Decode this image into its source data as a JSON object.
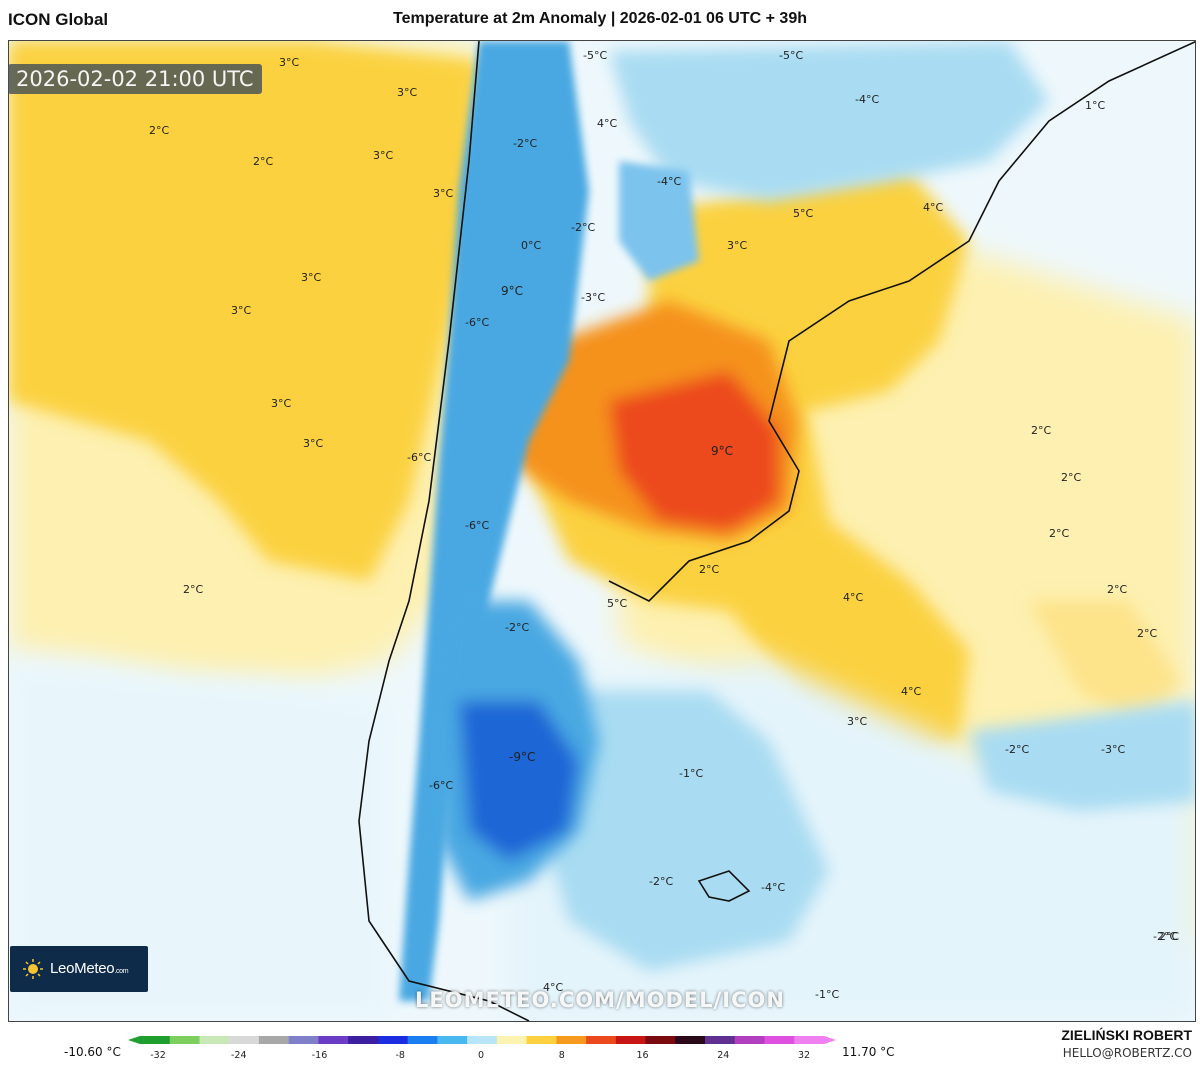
{
  "header": {
    "model_name": "ICON Global",
    "title": "Temperature at 2m Anomaly | 2026-02-01 06 UTC + 39h"
  },
  "map": {
    "valid_time": "2026-02-02 21:00 UTC",
    "watermark": "LEOMETEO.COM/MODEL/ICON",
    "contour_labels": [
      "3°C",
      "3°C",
      "2°C",
      "2°C",
      "3°C",
      "3°C",
      "3°C",
      "3°C",
      "3°C",
      "3°C",
      "2°C",
      "-5°C",
      "-2°C",
      "4°C",
      "0°C",
      "-2°C",
      "9°C",
      "-3°C",
      "-6°C",
      "-6°C",
      "-6°C",
      "-6°C",
      "-4°C",
      "-5°C",
      "-4°C",
      "1°C",
      "5°C",
      "4°C",
      "3°C",
      "9°C",
      "2°C",
      "2°C",
      "2°C",
      "2°C",
      "2°C",
      "4°C",
      "4°C",
      "3°C",
      "2°C",
      "5°C",
      "-2°C",
      "-9°C",
      "-4°C",
      "-1°C",
      "-2°C",
      "-2°C",
      "-3°C",
      "-2°C",
      "2°C",
      "-1°C",
      "4°C"
    ],
    "colors": {
      "warm_pale": "#fdf0b0",
      "warm_yellow": "#fbd13f",
      "warm_orange": "#f5921e",
      "warm_red": "#ec4a1d",
      "cool_pale": "#e6f5fb",
      "cool_light": "#a9dcf2",
      "cool_blue": "#4aa8e2",
      "cool_deep": "#1f66d6",
      "land_outline": "#111111"
    }
  },
  "legend": {
    "min_label": "-10.60 °C",
    "max_label": "11.70 °C",
    "ticks": [
      "-32",
      "-24",
      "-16",
      "-8",
      "0",
      "8",
      "16",
      "24",
      "32"
    ],
    "colors": [
      "#1e9e2e",
      "#7ccf5c",
      "#c9e8b8",
      "#d8d8d8",
      "#a8a8a8",
      "#8080c8",
      "#6a3cc8",
      "#3c1ea0",
      "#1c2ce0",
      "#1a7ef0",
      "#48b8f0",
      "#b8e6f8",
      "#fdf3b0",
      "#fbd13f",
      "#f59a1e",
      "#ec4a1d",
      "#c81414",
      "#7a0a10",
      "#2a0a18",
      "#603090",
      "#b040c0",
      "#e050e0",
      "#f080f0"
    ]
  },
  "branding": {
    "logo_text": "LeoMeteo",
    "logo_suffix": ".com",
    "author": "ZIELIŃSKI ROBERT",
    "email": "HELLO@ROBERTZ.CO"
  }
}
